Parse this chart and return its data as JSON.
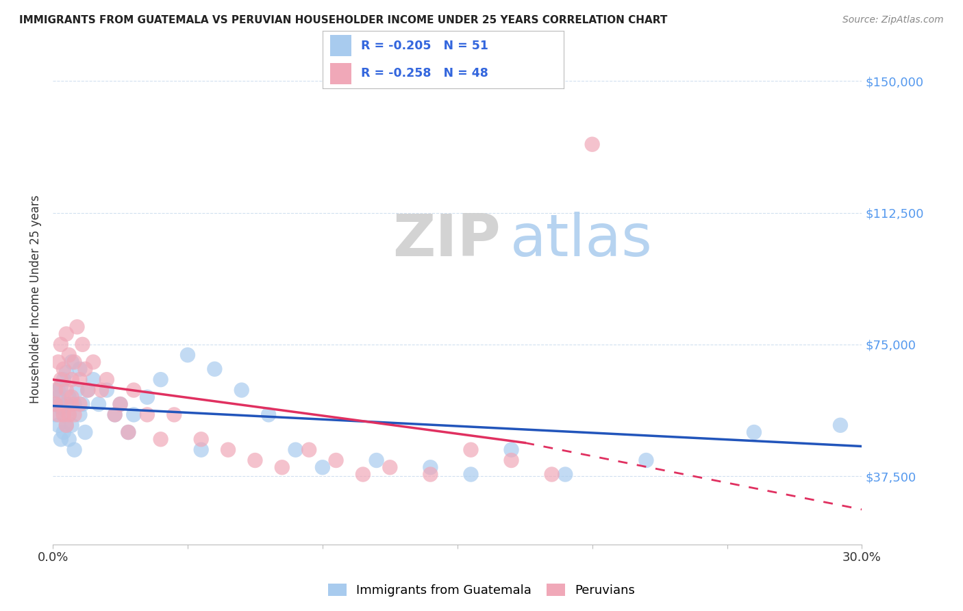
{
  "title": "IMMIGRANTS FROM GUATEMALA VS PERUVIAN HOUSEHOLDER INCOME UNDER 25 YEARS CORRELATION CHART",
  "source": "Source: ZipAtlas.com",
  "ylabel": "Householder Income Under 25 years",
  "legend_label1": "Immigrants from Guatemala",
  "legend_label2": "Peruvians",
  "r1": "-0.205",
  "n1": "51",
  "r2": "-0.258",
  "n2": "48",
  "color1": "#A8CBEE",
  "color2": "#F0A8B8",
  "line_color1": "#2255BB",
  "line_color2": "#E03060",
  "y_ticks": [
    37500,
    75000,
    112500,
    150000
  ],
  "y_tick_labels": [
    "$37,500",
    "$75,000",
    "$112,500",
    "$150,000"
  ],
  "watermark_zip": "ZIP",
  "watermark_atlas": "atlas",
  "x_min": 0.0,
  "x_max": 0.3,
  "y_min": 18000,
  "y_max": 158000,
  "guatemala_x": [
    0.001,
    0.001,
    0.002,
    0.002,
    0.002,
    0.003,
    0.003,
    0.003,
    0.004,
    0.004,
    0.004,
    0.005,
    0.005,
    0.005,
    0.006,
    0.006,
    0.006,
    0.007,
    0.007,
    0.008,
    0.008,
    0.009,
    0.01,
    0.01,
    0.011,
    0.012,
    0.013,
    0.015,
    0.017,
    0.02,
    0.023,
    0.025,
    0.028,
    0.03,
    0.035,
    0.04,
    0.05,
    0.055,
    0.06,
    0.07,
    0.08,
    0.09,
    0.1,
    0.12,
    0.14,
    0.155,
    0.17,
    0.19,
    0.22,
    0.26,
    0.292
  ],
  "guatemala_y": [
    58000,
    55000,
    62000,
    52000,
    60000,
    57000,
    63000,
    48000,
    55000,
    65000,
    50000,
    58000,
    52000,
    67000,
    55000,
    60000,
    48000,
    70000,
    52000,
    58000,
    45000,
    62000,
    55000,
    68000,
    58000,
    50000,
    62000,
    65000,
    58000,
    62000,
    55000,
    58000,
    50000,
    55000,
    60000,
    65000,
    72000,
    45000,
    68000,
    62000,
    55000,
    45000,
    40000,
    42000,
    40000,
    38000,
    45000,
    38000,
    42000,
    50000,
    52000
  ],
  "peruvian_x": [
    0.001,
    0.001,
    0.002,
    0.002,
    0.003,
    0.003,
    0.003,
    0.004,
    0.004,
    0.005,
    0.005,
    0.005,
    0.006,
    0.006,
    0.007,
    0.007,
    0.007,
    0.008,
    0.008,
    0.009,
    0.01,
    0.01,
    0.011,
    0.012,
    0.013,
    0.015,
    0.018,
    0.02,
    0.023,
    0.025,
    0.028,
    0.03,
    0.035,
    0.04,
    0.045,
    0.055,
    0.065,
    0.075,
    0.085,
    0.095,
    0.105,
    0.115,
    0.125,
    0.14,
    0.155,
    0.17,
    0.185,
    0.2
  ],
  "peruvian_y": [
    62000,
    58000,
    70000,
    55000,
    65000,
    58000,
    75000,
    55000,
    68000,
    62000,
    78000,
    52000,
    72000,
    55000,
    65000,
    60000,
    58000,
    70000,
    55000,
    80000,
    65000,
    58000,
    75000,
    68000,
    62000,
    70000,
    62000,
    65000,
    55000,
    58000,
    50000,
    62000,
    55000,
    48000,
    55000,
    48000,
    45000,
    42000,
    40000,
    45000,
    42000,
    38000,
    40000,
    38000,
    45000,
    42000,
    38000,
    132000
  ],
  "blue_line_x0": 0.0,
  "blue_line_y0": 57500,
  "blue_line_x1": 0.3,
  "blue_line_y1": 46000,
  "pink_line_x0": 0.0,
  "pink_line_y0": 65000,
  "pink_line_x1_solid": 0.175,
  "pink_line_y1_solid": 47000,
  "pink_line_x1_dash": 0.3,
  "pink_line_y1_dash": 28000
}
